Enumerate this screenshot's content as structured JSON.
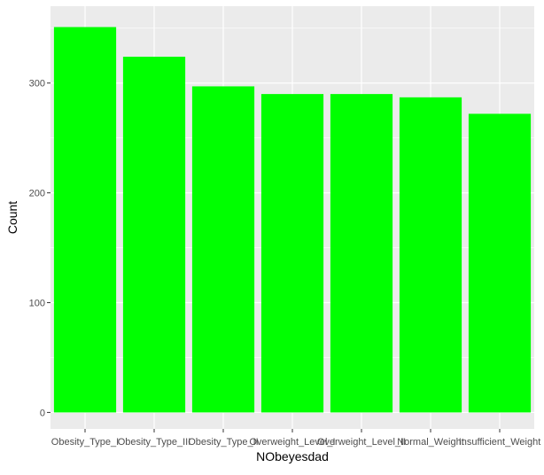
{
  "chart_data": {
    "type": "bar",
    "title": "",
    "xlabel": "NObeyesdad",
    "ylabel": "Count",
    "categories": [
      "Obesity_Type_I",
      "Obesity_Type_III",
      "Obesity_Type_II",
      "Overweight_Level_I",
      "Overweight_Level_II",
      "Normal_Weight",
      "Insufficient_Weight"
    ],
    "values": [
      351,
      324,
      297,
      290,
      290,
      287,
      272
    ],
    "ylim": [
      -15,
      370
    ],
    "yticks": [
      0,
      100,
      200,
      300
    ],
    "grid": true,
    "legend": "none",
    "colors": {
      "bar": "#00FF00",
      "panel": "#EBEBEB",
      "grid_major": "#FFFFFF",
      "axis_text": "#4D4D4D",
      "label_text": "#000000"
    }
  }
}
